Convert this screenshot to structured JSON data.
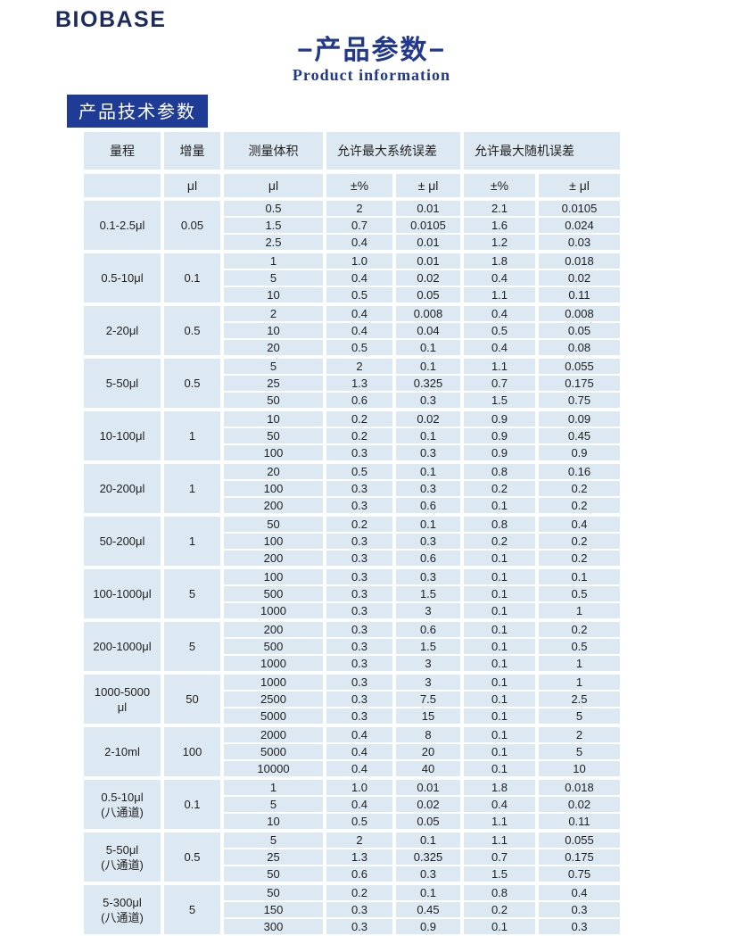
{
  "brand": {
    "logo_text": "BIOBASE"
  },
  "header": {
    "title": "−产品参数−",
    "subtitle": "Product information",
    "section_label": "产品技术参数"
  },
  "colors": {
    "brand_navy": "#1c2b5c",
    "title_blue": "#21388b",
    "section_label_bg": "#1e3c96",
    "cell_blue": "#dce8f2"
  },
  "table": {
    "columns": [
      "量程",
      "增量",
      "测量体积",
      "允许最大系统误差",
      "允许最大随机误差"
    ],
    "unit_row": [
      "",
      "μl",
      "μl",
      "±%",
      "± μl",
      "±%",
      "± μl"
    ],
    "groups": [
      {
        "range": "0.1-2.5μl",
        "increment": "0.05",
        "rows": [
          [
            "0.5",
            "2",
            "0.01",
            "2.1",
            "0.0105"
          ],
          [
            "1.5",
            "0.7",
            "0.0105",
            "1.6",
            "0.024"
          ],
          [
            "2.5",
            "0.4",
            "0.01",
            "1.2",
            "0.03"
          ]
        ]
      },
      {
        "range": "0.5-10μl",
        "increment": "0.1",
        "rows": [
          [
            "1",
            "1.0",
            "0.01",
            "1.8",
            "0.018"
          ],
          [
            "5",
            "0.4",
            "0.02",
            "0.4",
            "0.02"
          ],
          [
            "10",
            "0.5",
            "0.05",
            "1.1",
            "0.11"
          ]
        ]
      },
      {
        "range": "2-20μl",
        "increment": "0.5",
        "rows": [
          [
            "2",
            "0.4",
            "0.008",
            "0.4",
            "0.008"
          ],
          [
            "10",
            "0.4",
            "0.04",
            "0.5",
            "0.05"
          ],
          [
            "20",
            "0.5",
            "0.1",
            "0.4",
            "0.08"
          ]
        ]
      },
      {
        "range": "5-50μl",
        "increment": "0.5",
        "rows": [
          [
            "5",
            "2",
            "0.1",
            "1.1",
            "0.055"
          ],
          [
            "25",
            "1.3",
            "0.325",
            "0.7",
            "0.175"
          ],
          [
            "50",
            "0.6",
            "0.3",
            "1.5",
            "0.75"
          ]
        ]
      },
      {
        "range": "10-100μl",
        "increment": "1",
        "rows": [
          [
            "10",
            "0.2",
            "0.02",
            "0.9",
            "0.09"
          ],
          [
            "50",
            "0.2",
            "0.1",
            "0.9",
            "0.45"
          ],
          [
            "100",
            "0.3",
            "0.3",
            "0.9",
            "0.9"
          ]
        ]
      },
      {
        "range": "20-200μl",
        "increment": "1",
        "rows": [
          [
            "20",
            "0.5",
            "0.1",
            "0.8",
            "0.16"
          ],
          [
            "100",
            "0.3",
            "0.3",
            "0.2",
            "0.2"
          ],
          [
            "200",
            "0.3",
            "0.6",
            "0.1",
            "0.2"
          ]
        ]
      },
      {
        "range": "50-200μl",
        "increment": "1",
        "rows": [
          [
            "50",
            "0.2",
            "0.1",
            "0.8",
            "0.4"
          ],
          [
            "100",
            "0.3",
            "0.3",
            "0.2",
            "0.2"
          ],
          [
            "200",
            "0.3",
            "0.6",
            "0.1",
            "0.2"
          ]
        ]
      },
      {
        "range": "100-1000μl",
        "increment": "5",
        "rows": [
          [
            "100",
            "0.3",
            "0.3",
            "0.1",
            "0.1"
          ],
          [
            "500",
            "0.3",
            "1.5",
            "0.1",
            "0.5"
          ],
          [
            "1000",
            "0.3",
            "3",
            "0.1",
            "1"
          ]
        ]
      },
      {
        "range": "200-1000μl",
        "increment": "5",
        "rows": [
          [
            "200",
            "0.3",
            "0.6",
            "0.1",
            "0.2"
          ],
          [
            "500",
            "0.3",
            "1.5",
            "0.1",
            "0.5"
          ],
          [
            "1000",
            "0.3",
            "3",
            "0.1",
            "1"
          ]
        ]
      },
      {
        "range": "1000-5000\nμl",
        "increment": "50",
        "rows": [
          [
            "1000",
            "0.3",
            "3",
            "0.1",
            "1"
          ],
          [
            "2500",
            "0.3",
            "7.5",
            "0.1",
            "2.5"
          ],
          [
            "5000",
            "0.3",
            "15",
            "0.1",
            "5"
          ]
        ]
      },
      {
        "range": "2-10ml",
        "increment": "100",
        "rows": [
          [
            "2000",
            "0.4",
            "8",
            "0.1",
            "2"
          ],
          [
            "5000",
            "0.4",
            "20",
            "0.1",
            "5"
          ],
          [
            "10000",
            "0.4",
            "40",
            "0.1",
            "10"
          ]
        ]
      },
      {
        "range": "0.5-10μl\n(八通道)",
        "increment": "0.1",
        "rows": [
          [
            "1",
            "1.0",
            "0.01",
            "1.8",
            "0.018"
          ],
          [
            "5",
            "0.4",
            "0.02",
            "0.4",
            "0.02"
          ],
          [
            "10",
            "0.5",
            "0.05",
            "1.1",
            "0.11"
          ]
        ]
      },
      {
        "range": "5-50μl\n(八通道)",
        "increment": "0.5",
        "rows": [
          [
            "5",
            "2",
            "0.1",
            "1.1",
            "0.055"
          ],
          [
            "25",
            "1.3",
            "0.325",
            "0.7",
            "0.175"
          ],
          [
            "50",
            "0.6",
            "0.3",
            "1.5",
            "0.75"
          ]
        ]
      },
      {
        "range": "5-300μl\n(八通道)",
        "increment": "5",
        "rows": [
          [
            "50",
            "0.2",
            "0.1",
            "0.8",
            "0.4"
          ],
          [
            "150",
            "0.3",
            "0.45",
            "0.2",
            "0.3"
          ],
          [
            "300",
            "0.3",
            "0.9",
            "0.1",
            "0.3"
          ]
        ]
      }
    ]
  }
}
